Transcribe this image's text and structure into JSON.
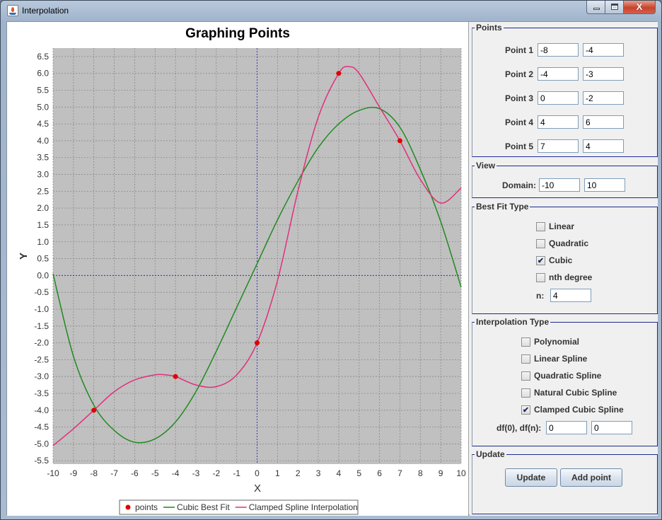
{
  "window": {
    "title": "Interpolation"
  },
  "chart_data": {
    "type": "line",
    "title": "Graphing Points",
    "xlabel": "X",
    "ylabel": "Y",
    "xlim": [
      -10,
      10
    ],
    "ylim": [
      -5.6,
      6.75
    ],
    "grid": true,
    "legend": "bottom",
    "x_ticks": [
      "-10",
      "-9",
      "-8",
      "-7",
      "-6",
      "-5",
      "-4",
      "-3",
      "-2",
      "-1",
      "0",
      "1",
      "2",
      "3",
      "4",
      "5",
      "6",
      "7",
      "8",
      "9",
      "10"
    ],
    "y_ticks": [
      "6.5",
      "6.0",
      "5.5",
      "5.0",
      "4.5",
      "4.0",
      "3.5",
      "3.0",
      "2.5",
      "2.0",
      "1.5",
      "1.0",
      "0.5",
      "0.0",
      "-0.5",
      "-1.0",
      "-1.5",
      "-2.0",
      "-2.5",
      "-3.0",
      "-3.5",
      "-4.0",
      "-4.5",
      "-5.0",
      "-5.5"
    ],
    "series": [
      {
        "name": "points",
        "kind": "scatter",
        "color": "#e00000",
        "x": [
          -8,
          -4,
          0,
          4,
          7
        ],
        "y": [
          -4,
          -3,
          -2,
          6,
          4
        ]
      },
      {
        "name": "Cubic Best Fit",
        "kind": "line",
        "color": "#1f8a1f",
        "x": [
          -10,
          -9,
          -8,
          -7,
          -6,
          -5,
          -4,
          -3,
          -2,
          -1,
          0,
          1,
          2,
          3,
          4,
          5,
          6,
          7,
          8,
          9,
          10
        ],
        "y": [
          0.05,
          -2.4,
          -3.85,
          -4.6,
          -4.95,
          -4.85,
          -4.35,
          -3.45,
          -2.25,
          -0.95,
          0.35,
          1.65,
          2.8,
          3.8,
          4.5,
          4.9,
          4.95,
          4.4,
          3.15,
          1.6,
          -0.35
        ]
      },
      {
        "name": "Clamped Spline Interpolation",
        "kind": "line",
        "color": "#e0307a",
        "x": [
          -10,
          -9,
          -8,
          -7,
          -6,
          -5,
          -4.5,
          -4,
          -3,
          -2,
          -1,
          0,
          1,
          2,
          3,
          4,
          4.5,
          5,
          6,
          7,
          8,
          9,
          10
        ],
        "y": [
          -5.05,
          -4.55,
          -4.0,
          -3.45,
          -3.1,
          -2.95,
          -2.95,
          -3.0,
          -3.25,
          -3.3,
          -2.95,
          -2.0,
          -0.15,
          2.5,
          4.7,
          6.0,
          6.2,
          6.0,
          5.0,
          4.0,
          2.85,
          2.15,
          2.6
        ]
      }
    ]
  },
  "points_group": {
    "legend": "Points",
    "rows": [
      {
        "label": "Point 1",
        "x": "-8",
        "y": "-4"
      },
      {
        "label": "Point 2",
        "x": "-4",
        "y": "-3"
      },
      {
        "label": "Point 3",
        "x": "0",
        "y": "-2"
      },
      {
        "label": "Point 4",
        "x": "4",
        "y": "6"
      },
      {
        "label": "Point 5",
        "x": "7",
        "y": "4"
      }
    ]
  },
  "view_group": {
    "legend": "View",
    "domain_label": "Domain:",
    "domain_min": "-10",
    "domain_max": "10"
  },
  "best_fit_group": {
    "legend": "Best Fit Type",
    "options": [
      {
        "label": "Linear",
        "checked": false
      },
      {
        "label": "Quadratic",
        "checked": false
      },
      {
        "label": "Cubic",
        "checked": true
      },
      {
        "label": "nth degree",
        "checked": false
      }
    ],
    "n_label": "n:",
    "n_value": "4"
  },
  "interp_group": {
    "legend": "Interpolation Type",
    "options": [
      {
        "label": "Polynomial",
        "checked": false
      },
      {
        "label": "Linear Spline",
        "checked": false
      },
      {
        "label": "Quadratic Spline",
        "checked": false
      },
      {
        "label": "Natural Cubic Spline",
        "checked": false
      },
      {
        "label": "Clamped Cubic Spline",
        "checked": true
      }
    ],
    "df_label": "df(0), df(n):",
    "df0": "0",
    "dfn": "0"
  },
  "update_group": {
    "legend": "Update",
    "update_label": "Update",
    "add_point_label": "Add point"
  },
  "check_glyph": "✔"
}
